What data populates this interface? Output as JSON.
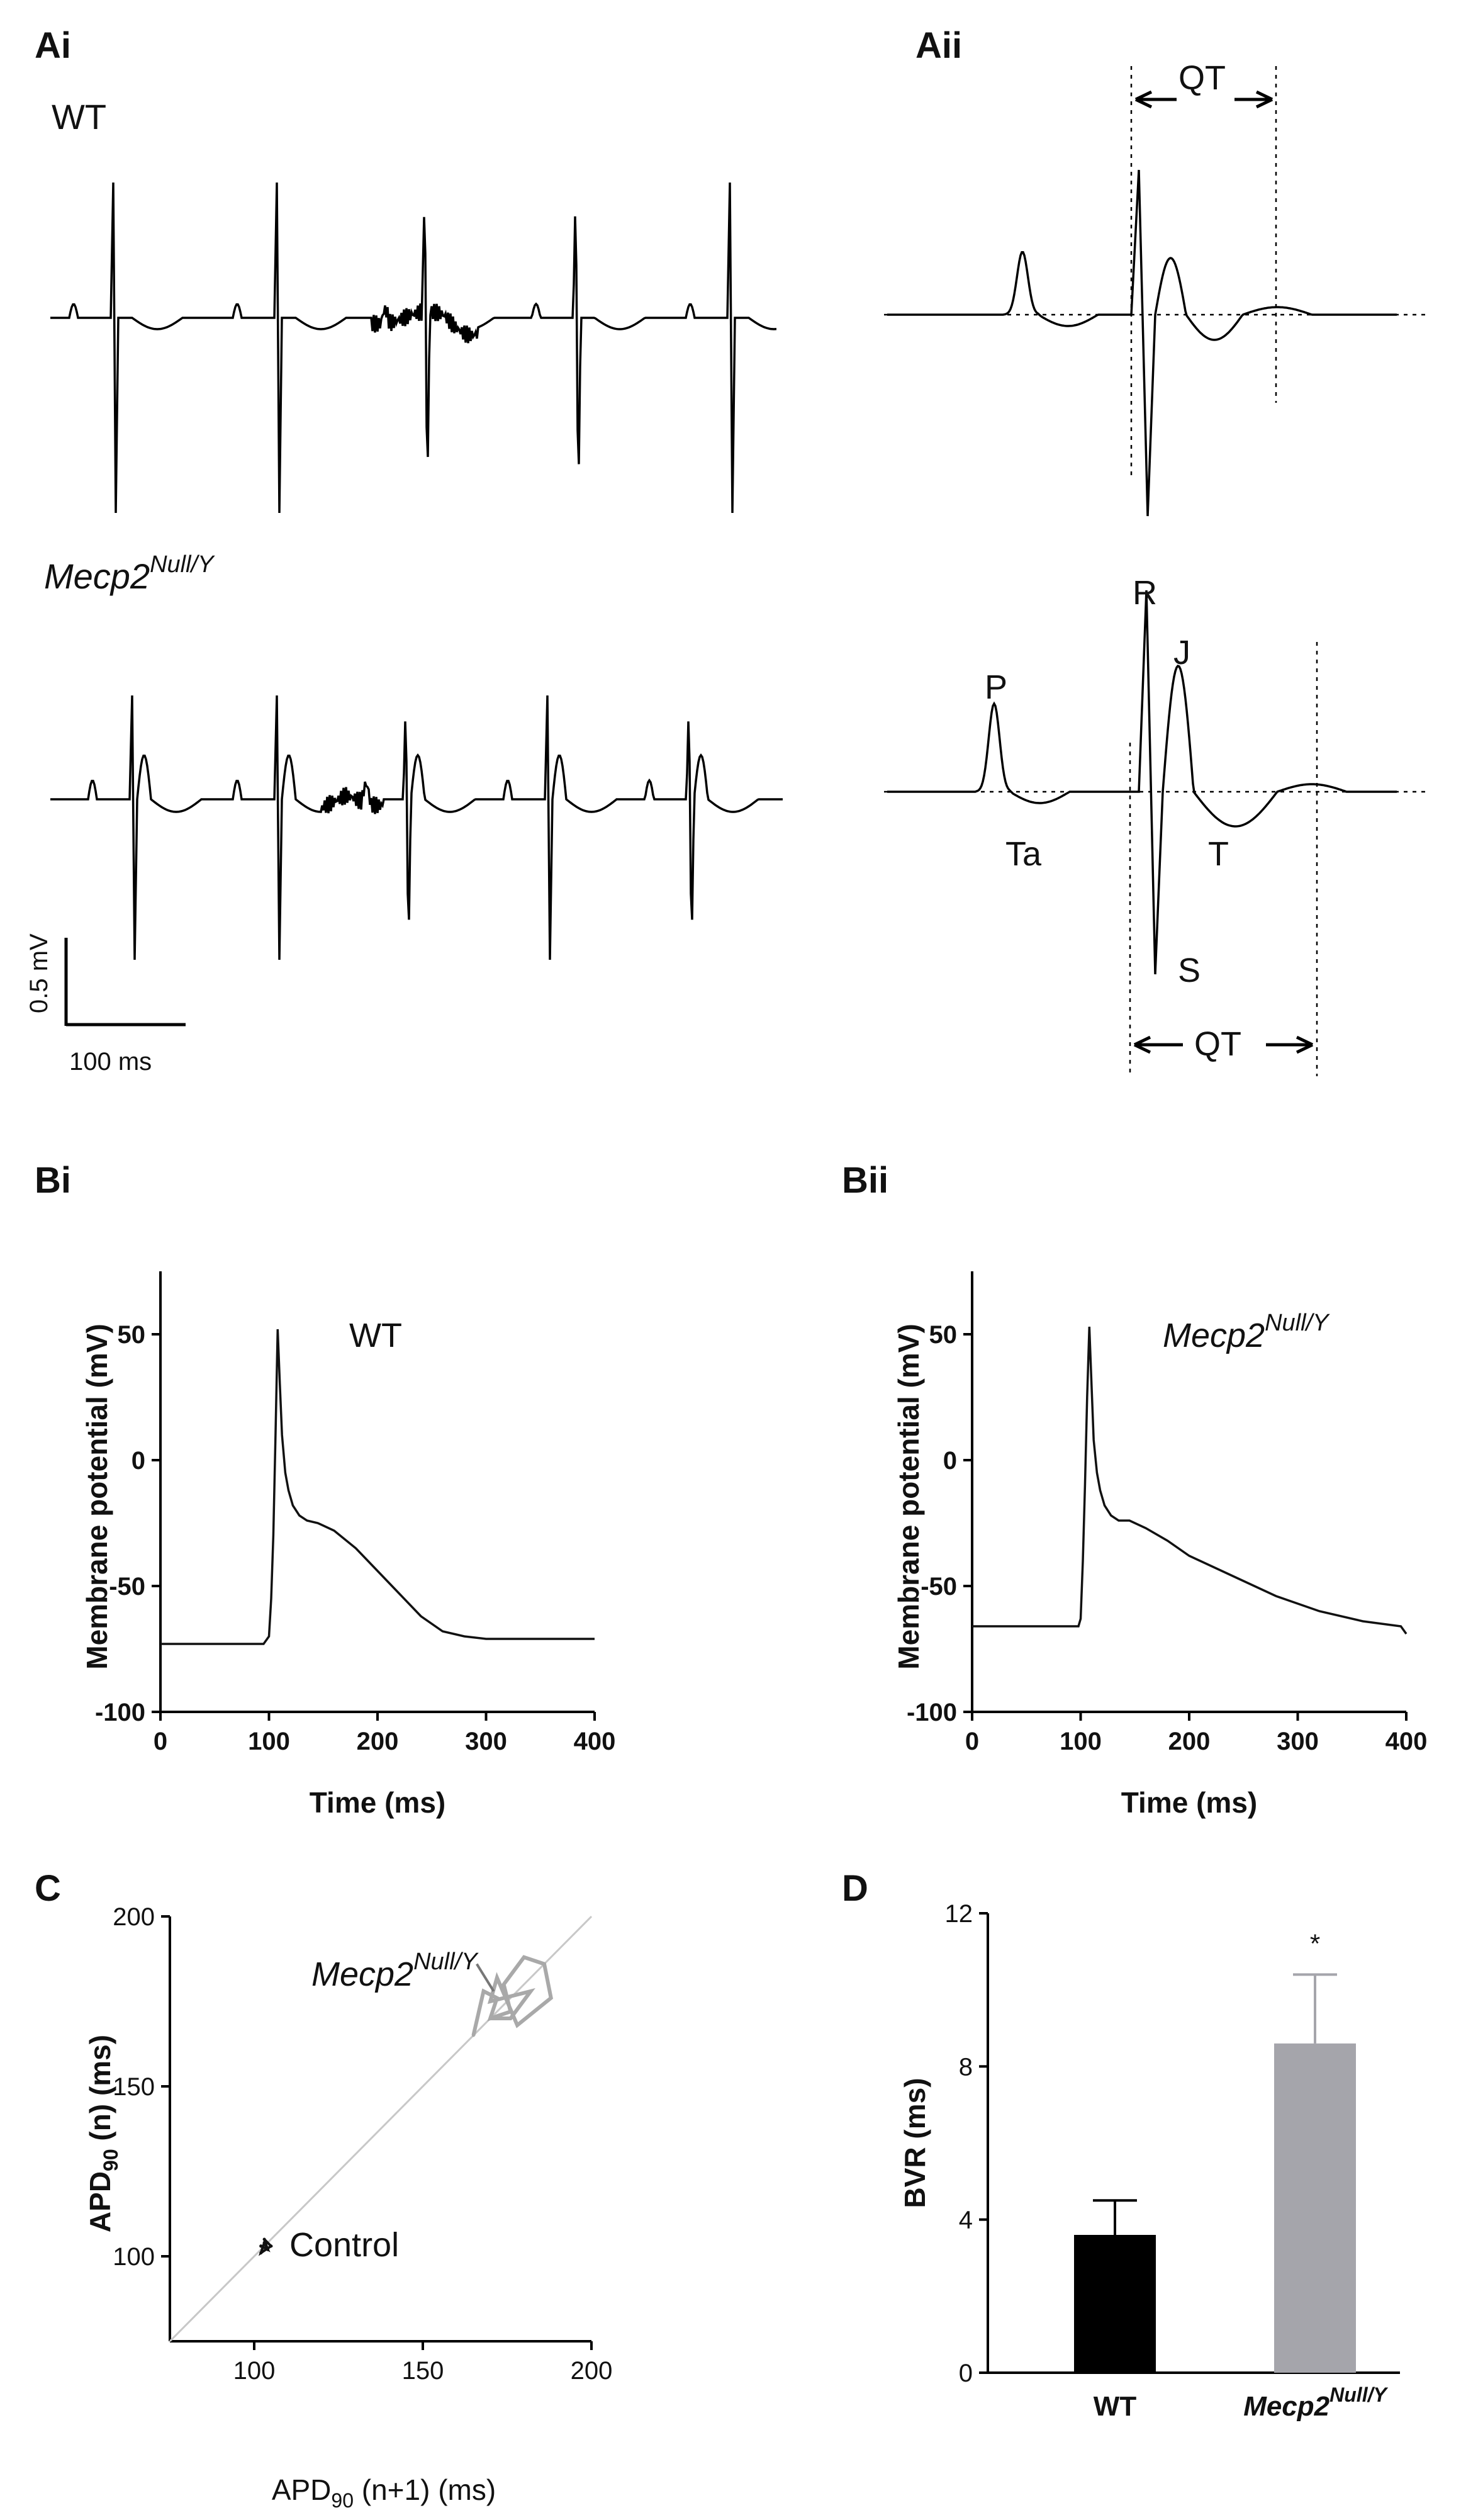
{
  "panels": {
    "Ai": "Ai",
    "Aii": "Aii",
    "Bi": "Bi",
    "Bii": "Bii",
    "C": "C",
    "D": "D"
  },
  "ecg": {
    "wt_label": "WT",
    "mecp2_main": "Mecp2",
    "mecp2_sup": "Null/Y",
    "scale_v": "0.5 mV",
    "scale_t": "100 ms",
    "waves": {
      "P": "P",
      "R": "R",
      "J": "J",
      "Ta": "Ta",
      "T": "T",
      "S": "S"
    },
    "qt": "QT"
  },
  "chart_data": [
    {
      "id": "Bi",
      "type": "line",
      "title": "",
      "annotation": "WT",
      "xlabel": "Time (ms)",
      "ylabel": "Membrane potential (mV)",
      "xlim": [
        0,
        400
      ],
      "ylim": [
        -100,
        75
      ],
      "xticks": [
        0,
        100,
        200,
        300,
        400
      ],
      "yticks": [
        -100,
        -50,
        0,
        50
      ],
      "x": [
        0,
        95,
        100,
        102,
        104,
        106,
        108,
        110,
        112,
        115,
        118,
        122,
        128,
        135,
        145,
        160,
        180,
        200,
        220,
        240,
        260,
        280,
        300,
        340,
        400
      ],
      "y": [
        -73,
        -73,
        -70,
        -55,
        -30,
        10,
        52,
        30,
        10,
        -5,
        -12,
        -18,
        -22,
        -24,
        -25,
        -28,
        -35,
        -44,
        -53,
        -62,
        -68,
        -70,
        -71,
        -71,
        -71
      ]
    },
    {
      "id": "Bii",
      "type": "line",
      "annotation_main": "Mecp2",
      "annotation_sup": "Null/Y",
      "xlabel": "Time (ms)",
      "ylabel": "Membrane potential (mV)",
      "xlim": [
        0,
        400
      ],
      "ylim": [
        -100,
        75
      ],
      "xticks": [
        0,
        100,
        200,
        300,
        400
      ],
      "yticks": [
        -100,
        -50,
        0,
        50
      ],
      "x": [
        0,
        98,
        100,
        102,
        104,
        106,
        108,
        110,
        112,
        115,
        118,
        122,
        128,
        135,
        145,
        160,
        180,
        200,
        240,
        280,
        320,
        360,
        395,
        400
      ],
      "y": [
        -66,
        -66,
        -63,
        -40,
        -10,
        25,
        53,
        30,
        8,
        -5,
        -12,
        -18,
        -22,
        -24,
        -24,
        -27,
        -32,
        -38,
        -46,
        -54,
        -60,
        -64,
        -66,
        -69
      ]
    },
    {
      "id": "C",
      "type": "scatter",
      "xlabel_main": "APD",
      "xlabel_sub": "90",
      "xlabel_rest": " (n+1) (ms)",
      "ylabel_main": "APD",
      "ylabel_sub": "90",
      "ylabel_rest": " (n) (ms)",
      "xlim": [
        75,
        200
      ],
      "ylim": [
        75,
        200
      ],
      "xticks": [
        100,
        150,
        200
      ],
      "yticks": [
        100,
        150,
        200
      ],
      "identity_line": true,
      "series": [
        {
          "name": "Control",
          "color": "#111111",
          "x": [
            102,
            104,
            103,
            105,
            102,
            103,
            104,
            102
          ],
          "y": [
            103,
            102,
            105,
            103,
            101,
            104,
            102,
            103
          ]
        },
        {
          "name_main": "Mecp2",
          "name_sup": "Null/Y",
          "color": "#a9a9a9",
          "x": [
            165,
            168,
            172,
            170,
            176,
            174,
            180,
            186,
            188,
            178,
            172,
            170,
            182,
            176,
            170
          ],
          "y": [
            165,
            178,
            176,
            170,
            172,
            180,
            188,
            186,
            176,
            168,
            182,
            175,
            178,
            170,
            170
          ]
        }
      ]
    },
    {
      "id": "D",
      "type": "bar",
      "ylabel": "BVR (ms)",
      "ylim": [
        0,
        12
      ],
      "yticks": [
        0,
        4,
        8,
        12
      ],
      "categories": [
        "WT",
        "Mecp2"
      ],
      "category_sup": [
        "",
        "Null/Y"
      ],
      "values": [
        3.6,
        8.6
      ],
      "errors": [
        0.9,
        1.8
      ],
      "colors": [
        "#000000",
        "#a5a5ab"
      ],
      "significance": [
        "",
        "*"
      ]
    }
  ]
}
